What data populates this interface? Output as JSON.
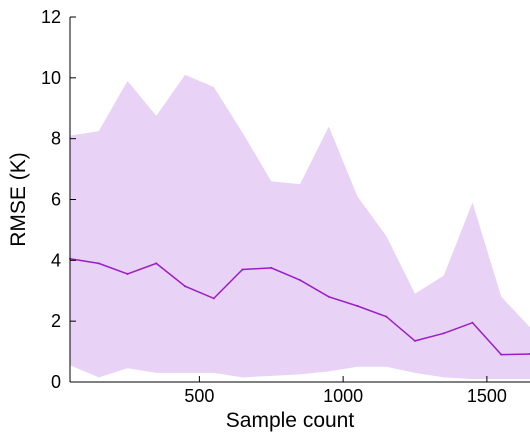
{
  "chart_data": {
    "type": "area",
    "xlabel": "Sample count",
    "ylabel": "RMSE (K)",
    "xlim": [
      50,
      1650
    ],
    "ylim": [
      0,
      12
    ],
    "xticks": [
      500,
      1000,
      1500
    ],
    "yticks": [
      0,
      2,
      4,
      6,
      8,
      10,
      12
    ],
    "grid": false,
    "legend": "none",
    "band": {
      "x": [
        50,
        150,
        250,
        350,
        450,
        550,
        650,
        750,
        850,
        950,
        1050,
        1150,
        1250,
        1350,
        1450,
        1550,
        1650
      ],
      "upper": [
        8.1,
        8.25,
        9.9,
        8.75,
        10.1,
        9.7,
        8.2,
        6.6,
        6.5,
        8.4,
        6.1,
        4.8,
        2.9,
        3.5,
        5.9,
        2.8,
        1.8
      ],
      "lower": [
        0.55,
        0.15,
        0.45,
        0.3,
        0.3,
        0.3,
        0.15,
        0.2,
        0.25,
        0.35,
        0.5,
        0.5,
        0.3,
        0.15,
        0.1,
        0.1,
        0.1
      ]
    },
    "series": [
      {
        "x": [
          50,
          150,
          250,
          350,
          450,
          550,
          650,
          750,
          850,
          950,
          1050,
          1150,
          1250,
          1350,
          1450,
          1550,
          1650
        ],
        "values": [
          4.05,
          3.9,
          3.55,
          3.9,
          3.15,
          2.75,
          3.7,
          3.75,
          3.35,
          2.8,
          2.5,
          2.15,
          1.35,
          1.6,
          1.95,
          0.9,
          0.92
        ]
      }
    ],
    "colors": {
      "band": "#e8d3f6",
      "line": "#9a1ec4"
    }
  }
}
